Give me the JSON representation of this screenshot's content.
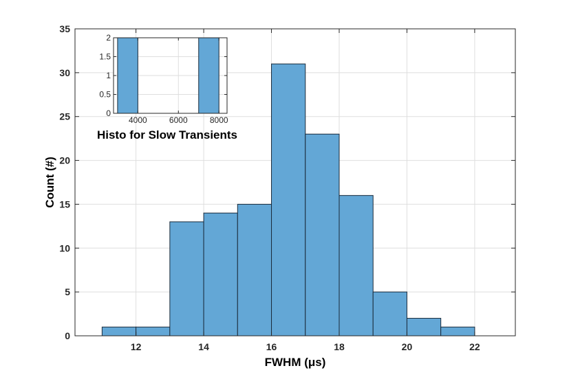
{
  "chart_data": [
    {
      "type": "bar",
      "title": "",
      "xlabel": "FWHM (μs)",
      "ylabel": "Count (#)",
      "xlim": [
        10.2,
        23.2
      ],
      "ylim": [
        0,
        35
      ],
      "grid": true,
      "bar_color": "#63a7d6",
      "edge_color": "#1a2a3a",
      "bins": [
        {
          "x0": 11,
          "x1": 12,
          "value": 1
        },
        {
          "x0": 12,
          "x1": 13,
          "value": 1
        },
        {
          "x0": 13,
          "x1": 14,
          "value": 13
        },
        {
          "x0": 14,
          "x1": 15,
          "value": 14
        },
        {
          "x0": 15,
          "x1": 16,
          "value": 15
        },
        {
          "x0": 16,
          "x1": 17,
          "value": 31
        },
        {
          "x0": 17,
          "x1": 18,
          "value": 23
        },
        {
          "x0": 18,
          "x1": 19,
          "value": 16
        },
        {
          "x0": 19,
          "x1": 20,
          "value": 5
        },
        {
          "x0": 20,
          "x1": 21,
          "value": 2
        },
        {
          "x0": 21,
          "x1": 22,
          "value": 1
        }
      ],
      "xticks": [
        12,
        14,
        16,
        18,
        20,
        22
      ],
      "yticks": [
        0,
        5,
        10,
        15,
        20,
        25,
        30,
        35
      ]
    },
    {
      "type": "bar",
      "title": "Histo for Slow Transients",
      "xlabel": "",
      "ylabel": "",
      "xlim": [
        2800,
        8400
      ],
      "ylim": [
        0,
        2
      ],
      "grid": true,
      "bar_color": "#63a7d6",
      "edge_color": "#1a2a3a",
      "bins": [
        {
          "x0": 3000,
          "x1": 4000,
          "value": 2
        },
        {
          "x0": 4000,
          "x1": 5000,
          "value": 0
        },
        {
          "x0": 5000,
          "x1": 6000,
          "value": 0
        },
        {
          "x0": 6000,
          "x1": 7000,
          "value": 0
        },
        {
          "x0": 7000,
          "x1": 8000,
          "value": 2
        }
      ],
      "xticks": [
        4000,
        6000,
        8000
      ],
      "yticks": [
        0,
        0.5,
        1,
        1.5,
        2
      ]
    }
  ]
}
